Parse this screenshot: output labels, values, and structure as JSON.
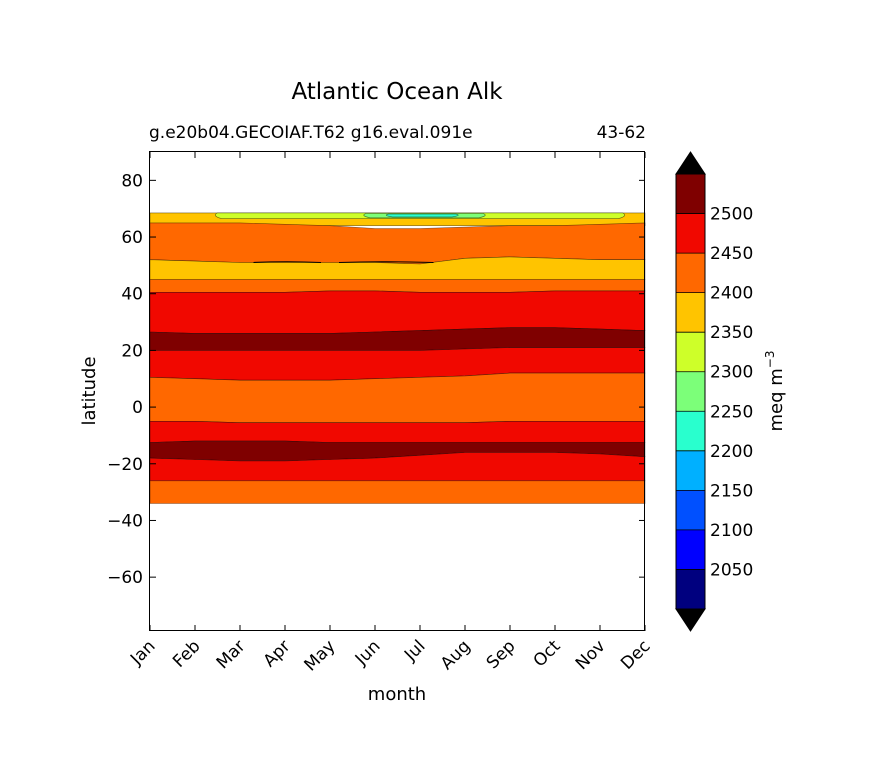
{
  "chart_data": {
    "type": "contourf",
    "title": "Atlantic Ocean Alk",
    "subtitle_left": "g.e20b04.GECOIAF.T62 g16.eval.091e",
    "subtitle_right": "43-62",
    "xlabel": "month",
    "ylabel": "latitude",
    "x_ticks": [
      "Jan",
      "Feb",
      "Mar",
      "Apr",
      "May",
      "Jun",
      "Jul",
      "Aug",
      "Sep",
      "Oct",
      "Nov",
      "Dec"
    ],
    "y_ticks": [
      80,
      60,
      40,
      20,
      0,
      -20,
      -40,
      -60
    ],
    "ylim": [
      -79,
      90
    ],
    "colorbar": {
      "label": "meq m",
      "label_sup": "−3",
      "tick_labels": [
        "2500",
        "2450",
        "2400",
        "2350",
        "2300",
        "2250",
        "2200",
        "2150",
        "2100",
        "2050"
      ],
      "levels": [
        2000,
        2050,
        2100,
        2150,
        2200,
        2250,
        2300,
        2350,
        2400,
        2450,
        2500,
        2550
      ],
      "colors": [
        "#00007f",
        "#0000ff",
        "#0050ff",
        "#00b0ff",
        "#29ffce",
        "#7cff79",
        "#ceff29",
        "#ffc400",
        "#ff6800",
        "#f10800",
        "#7f0000"
      ],
      "extend_colors": {
        "under": "#000000",
        "over": "#000000"
      }
    },
    "bands": [
      {
        "range": "2350-2400",
        "color": "#ffc400",
        "top": [
          68.5,
          68.5,
          68.5,
          68.5,
          68.5,
          68.5,
          68.5,
          68.5,
          68.5,
          68.5,
          68.5,
          68.5
        ],
        "bottom": [
          64,
          64,
          64,
          64,
          64,
          64,
          64,
          64,
          64,
          64,
          64,
          64
        ]
      },
      {
        "range": "2400-2450",
        "color": "#ff6800",
        "top": [
          65,
          65,
          65,
          64.5,
          64,
          63,
          63,
          63.5,
          64,
          64,
          64.5,
          65
        ],
        "bottom": [
          52,
          51.5,
          51,
          51,
          51,
          51,
          50.5,
          52.5,
          53,
          52.5,
          52,
          52
        ]
      },
      {
        "range": "2350-2400",
        "color": "#ffc400",
        "top": [
          52,
          51.5,
          51,
          51,
          51,
          51,
          50.5,
          52.5,
          53,
          52.5,
          52,
          52
        ],
        "bottom": [
          45,
          45,
          45,
          45,
          45,
          45,
          45,
          45,
          45,
          45,
          45,
          45
        ]
      },
      {
        "range": "2400-2450",
        "color": "#ff6800",
        "top": [
          45,
          45,
          45,
          45,
          45,
          45,
          45,
          45,
          45,
          45,
          45,
          45
        ],
        "bottom": [
          40.5,
          40.5,
          40.5,
          40.5,
          41,
          41,
          40.5,
          40.5,
          40.5,
          41,
          41,
          41
        ]
      },
      {
        "range": "2450-2500",
        "color": "#f10800",
        "top": [
          40.5,
          40.5,
          40.5,
          40.5,
          41,
          41,
          40.5,
          40.5,
          40.5,
          41,
          41,
          41
        ],
        "bottom": [
          26.5,
          26,
          26,
          26,
          26,
          26.5,
          27,
          27.5,
          28,
          28,
          27.5,
          27
        ]
      },
      {
        "range": "2500-2550",
        "color": "#7f0000",
        "top": [
          26.5,
          26,
          26,
          26,
          26,
          26.5,
          27,
          27.5,
          28,
          28,
          27.5,
          27
        ],
        "bottom": [
          20,
          20,
          20,
          20,
          20,
          20,
          20,
          20.5,
          21,
          21,
          21,
          21
        ]
      },
      {
        "range": "2450-2500",
        "color": "#f10800",
        "top": [
          20,
          20,
          20,
          20,
          20,
          20,
          20,
          20.5,
          21,
          21,
          21,
          21
        ],
        "bottom": [
          10.5,
          10,
          9.5,
          9.5,
          9.5,
          10,
          10.5,
          11,
          12,
          12,
          12,
          12
        ]
      },
      {
        "range": "2400-2450",
        "color": "#ff6800",
        "top": [
          10.5,
          10,
          9.5,
          9.5,
          9.5,
          10,
          10.5,
          11,
          12,
          12,
          12,
          12
        ],
        "bottom": [
          -5,
          -5,
          -5.5,
          -5.5,
          -5.5,
          -5.5,
          -5.5,
          -5.5,
          -5,
          -5,
          -5,
          -5
        ]
      },
      {
        "range": "2450-2500",
        "color": "#f10800",
        "top": [
          -5,
          -5,
          -5.5,
          -5.5,
          -5.5,
          -5.5,
          -5.5,
          -5.5,
          -5,
          -5,
          -5,
          -5
        ],
        "bottom": [
          -12.5,
          -12,
          -12,
          -12,
          -12.5,
          -12.5,
          -12.5,
          -12.5,
          -12.5,
          -12.5,
          -12.5,
          -12.5
        ]
      },
      {
        "range": "2500-2550",
        "color": "#7f0000",
        "top": [
          -12.5,
          -12,
          -12,
          -12,
          -12.5,
          -12.5,
          -12.5,
          -12.5,
          -12.5,
          -12.5,
          -12.5,
          -12.5
        ],
        "bottom": [
          -18,
          -18.5,
          -19,
          -19,
          -18.5,
          -18,
          -17,
          -16,
          -16,
          -16,
          -16.5,
          -17.5
        ]
      },
      {
        "range": "2450-2500",
        "color": "#f10800",
        "top": [
          -18,
          -18.5,
          -19,
          -19,
          -18.5,
          -18,
          -17,
          -16,
          -16,
          -16,
          -16.5,
          -17.5
        ],
        "bottom": [
          -26,
          -26,
          -26,
          -26,
          -26,
          -26,
          -26,
          -26,
          -26,
          -26,
          -26,
          -26
        ]
      },
      {
        "range": "2400-2450",
        "color": "#ff6800",
        "top": [
          -26,
          -26,
          -26,
          -26,
          -26,
          -26,
          -26,
          -26,
          -26,
          -26,
          -26,
          -26
        ],
        "bottom": [
          -34,
          -34,
          -34,
          -34,
          -34,
          -34,
          -34,
          -34,
          -34,
          -34,
          -34,
          -34
        ]
      }
    ],
    "patches": [
      {
        "range": "2300-2350",
        "color": "#ceff29",
        "x": [
          1.5,
          10.5
        ],
        "top": 68.5,
        "bottom": 66.5
      },
      {
        "range": "2250-2300",
        "color": "#7cff79",
        "x": [
          4.8,
          7.4
        ],
        "top": 68.3,
        "bottom": 66.8
      },
      {
        "range": "2200-2250",
        "color": "#29ffce",
        "x": [
          5.3,
          6.8
        ],
        "top": 68.1,
        "bottom": 67.1
      }
    ],
    "contour_lines": [
      {
        "x": [
          2.3,
          3.8
        ],
        "y": 51
      },
      {
        "x": [
          4.2,
          6.3
        ],
        "y": 51
      }
    ]
  }
}
